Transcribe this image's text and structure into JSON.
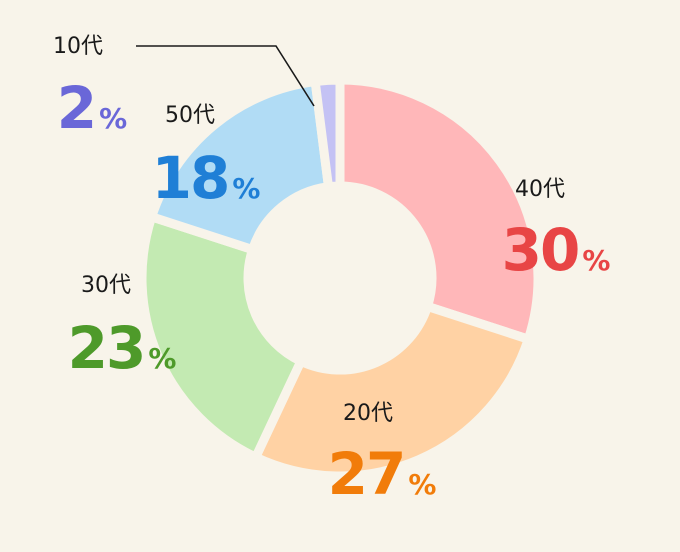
{
  "chart_data": {
    "type": "pie",
    "title": "",
    "unit": "%",
    "slices": [
      {
        "label": "40代",
        "value": 30,
        "color": "#ffb7b9",
        "text_color": "#e84545"
      },
      {
        "label": "20代",
        "value": 27,
        "color": "#ffd2a4",
        "text_color": "#f17c0a"
      },
      {
        "label": "30代",
        "value": 23,
        "color": "#c3eab2",
        "text_color": "#4e9a2a"
      },
      {
        "label": "50代",
        "value": 18,
        "color": "#b1dcf5",
        "text_color": "#1f7fd6"
      },
      {
        "label": "10代",
        "value": 2,
        "color": "#c4c2f4",
        "text_color": "#6a67d8"
      }
    ]
  }
}
